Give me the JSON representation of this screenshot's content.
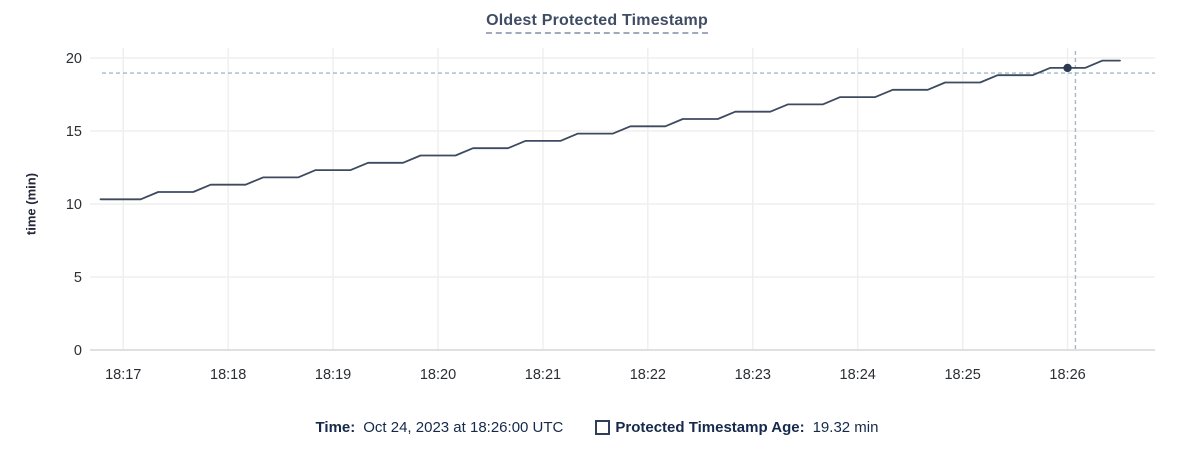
{
  "title": {
    "text": "Oldest Protected Timestamp"
  },
  "colors": {
    "line": "#3e4a60",
    "point": "#2c3a52",
    "crosshair": "#a2bac6",
    "grid": "#efefef",
    "axis": "#e0e0e0",
    "tick_text": "#2b2e33",
    "title_text": "#3f4c63",
    "legend_text": "#16294b"
  },
  "chart_data": {
    "type": "line",
    "title": "Oldest Protected Timestamp",
    "xlabel": "",
    "ylabel": "time (min)",
    "ylim": [
      0,
      20
    ],
    "yticks": [
      0,
      5,
      10,
      15,
      20
    ],
    "grid": true,
    "legend_position": "bottom",
    "x_unit": "seconds since 18:17:00",
    "x_domain_seconds": [
      -19,
      590
    ],
    "xticks": [
      {
        "t": 0,
        "label": "18:17"
      },
      {
        "t": 60,
        "label": "18:18"
      },
      {
        "t": 120,
        "label": "18:19"
      },
      {
        "t": 180,
        "label": "18:20"
      },
      {
        "t": 240,
        "label": "18:21"
      },
      {
        "t": 300,
        "label": "18:22"
      },
      {
        "t": 360,
        "label": "18:23"
      },
      {
        "t": 420,
        "label": "18:24"
      },
      {
        "t": 480,
        "label": "18:25"
      },
      {
        "t": 540,
        "label": "18:26"
      }
    ],
    "series": [
      {
        "name": "Protected Timestamp Age",
        "unit": "min",
        "points": [
          [
            -13,
            10.32
          ],
          [
            0,
            10.32
          ],
          [
            10,
            10.32
          ],
          [
            20,
            10.82
          ],
          [
            30,
            10.82
          ],
          [
            40,
            10.82
          ],
          [
            50,
            11.32
          ],
          [
            60,
            11.32
          ],
          [
            70,
            11.32
          ],
          [
            80,
            11.82
          ],
          [
            90,
            11.82
          ],
          [
            100,
            11.82
          ],
          [
            110,
            12.32
          ],
          [
            120,
            12.32
          ],
          [
            130,
            12.32
          ],
          [
            140,
            12.82
          ],
          [
            150,
            12.82
          ],
          [
            160,
            12.82
          ],
          [
            170,
            13.32
          ],
          [
            180,
            13.32
          ],
          [
            190,
            13.32
          ],
          [
            200,
            13.82
          ],
          [
            210,
            13.82
          ],
          [
            220,
            13.82
          ],
          [
            230,
            14.32
          ],
          [
            240,
            14.32
          ],
          [
            250,
            14.32
          ],
          [
            260,
            14.82
          ],
          [
            270,
            14.82
          ],
          [
            280,
            14.82
          ],
          [
            290,
            15.32
          ],
          [
            300,
            15.32
          ],
          [
            310,
            15.32
          ],
          [
            320,
            15.82
          ],
          [
            330,
            15.82
          ],
          [
            340,
            15.82
          ],
          [
            350,
            16.32
          ],
          [
            360,
            16.32
          ],
          [
            370,
            16.32
          ],
          [
            380,
            16.82
          ],
          [
            390,
            16.82
          ],
          [
            400,
            16.82
          ],
          [
            410,
            17.32
          ],
          [
            420,
            17.32
          ],
          [
            430,
            17.32
          ],
          [
            440,
            17.82
          ],
          [
            450,
            17.82
          ],
          [
            460,
            17.82
          ],
          [
            470,
            18.32
          ],
          [
            480,
            18.32
          ],
          [
            490,
            18.32
          ],
          [
            500,
            18.82
          ],
          [
            510,
            18.82
          ],
          [
            520,
            18.82
          ],
          [
            530,
            19.32
          ],
          [
            540,
            19.32
          ],
          [
            550,
            19.32
          ],
          [
            560,
            19.82
          ],
          [
            570,
            19.82
          ]
        ]
      }
    ],
    "hover_point": {
      "t": 540,
      "value": 19.32
    },
    "crosshair": {
      "t": 544.5,
      "value": 18.97
    }
  },
  "legend": {
    "time_label": "Time:",
    "time_value": "Oct 24, 2023 at 18:26:00 UTC",
    "series_label": "Protected Timestamp Age:",
    "series_value": "19.32 min"
  }
}
